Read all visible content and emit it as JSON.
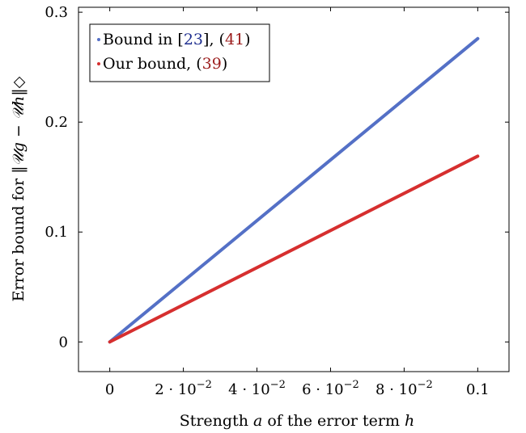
{
  "chart_data": {
    "type": "line",
    "xlabel": {
      "prefix": "Strength ",
      "var1": "a",
      "middle": " of the error term ",
      "var2": "h"
    },
    "ylabel": {
      "prefix": "Error bound for ",
      "formula": "‖𝒰g − 𝒰h‖◇"
    },
    "xlim": [
      -0.0085,
      0.1085
    ],
    "ylim": [
      -0.027,
      0.3045
    ],
    "x_ticks": [
      {
        "value": 0,
        "base": "0",
        "exp": ""
      },
      {
        "value": 0.02,
        "base": "2 · 10",
        "exp": "−2"
      },
      {
        "value": 0.04,
        "base": "4 · 10",
        "exp": "−2"
      },
      {
        "value": 0.06,
        "base": "6 · 10",
        "exp": "−2"
      },
      {
        "value": 0.08,
        "base": "8 · 10",
        "exp": "−2"
      },
      {
        "value": 0.1,
        "base": "0.1",
        "exp": ""
      }
    ],
    "y_ticks": [
      {
        "value": 0,
        "label": "0"
      },
      {
        "value": 0.1,
        "label": "0.1"
      },
      {
        "value": 0.2,
        "label": "0.2"
      },
      {
        "value": 0.3,
        "label": "0.3"
      }
    ],
    "series": [
      {
        "name": "Bound in [23], (41)",
        "name_parts": {
          "text1": "Bound in [",
          "ref1": "23",
          "text2": "], (",
          "ref2": "41",
          "text3": ")"
        },
        "color": "#5470c6",
        "x": [
          0,
          0.1
        ],
        "y": [
          0,
          0.276
        ]
      },
      {
        "name": "Our bound, (39)",
        "name_parts": {
          "text1": "Our bound, (",
          "ref1": "",
          "text2": "",
          "ref2": "39",
          "text3": ")"
        },
        "color": "#d62f2f",
        "x": [
          0,
          0.1
        ],
        "y": [
          0,
          0.169
        ]
      }
    ],
    "grid": false,
    "legend": "top-left"
  }
}
